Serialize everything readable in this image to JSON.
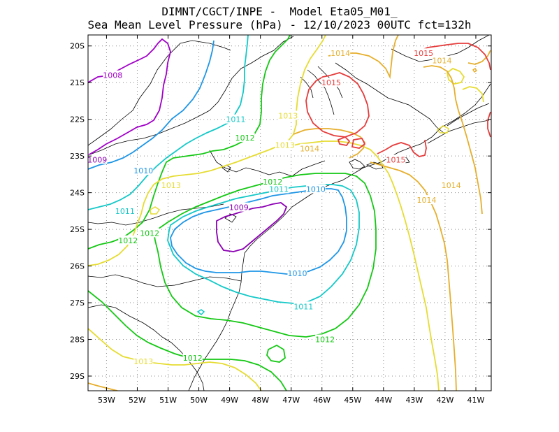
{
  "header": {
    "line1": "DIMNT/CGCT/INPE -  Model Eta05_M01_",
    "line2": "Sea Mean Level Pressure (hPa) - 12/10/2023 00UTC fct=132h"
  },
  "axes": {
    "lon_range": [
      -53.6,
      -40.5
    ],
    "lat_range": [
      -29.4,
      -19.7
    ],
    "lon_ticks": [
      {
        "value": -53,
        "label": "53W"
      },
      {
        "value": -52,
        "label": "52W"
      },
      {
        "value": -51,
        "label": "51W"
      },
      {
        "value": -50,
        "label": "50W"
      },
      {
        "value": -49,
        "label": "49W"
      },
      {
        "value": -48,
        "label": "48W"
      },
      {
        "value": -47,
        "label": "47W"
      },
      {
        "value": -46,
        "label": "46W"
      },
      {
        "value": -45,
        "label": "45W"
      },
      {
        "value": -44,
        "label": "44W"
      },
      {
        "value": -43,
        "label": "43W"
      },
      {
        "value": -42,
        "label": "42W"
      },
      {
        "value": -41,
        "label": "41W"
      }
    ],
    "lat_ticks": [
      {
        "value": -20,
        "label": "20S"
      },
      {
        "value": -21,
        "label": "21S"
      },
      {
        "value": -22,
        "label": "22S"
      },
      {
        "value": -23,
        "label": "23S"
      },
      {
        "value": -24,
        "label": "24S"
      },
      {
        "value": -25,
        "label": "25S"
      },
      {
        "value": -26,
        "label": "26S"
      },
      {
        "value": -27,
        "label": "27S"
      },
      {
        "value": -28,
        "label": "28S"
      },
      {
        "value": -29,
        "label": "29S"
      }
    ],
    "grid": "dotted"
  },
  "contour_levels": [
    {
      "value": 1008,
      "color": "#a000c8"
    },
    {
      "value": 1009,
      "color": "#8c00b4"
    },
    {
      "value": 1010,
      "color": "#1e96e6"
    },
    {
      "value": 1011,
      "color": "#14c8c8"
    },
    {
      "value": 1012,
      "color": "#14c814"
    },
    {
      "value": 1013,
      "color": "#e6dc32"
    },
    {
      "value": 1014,
      "color": "#e6af2d"
    },
    {
      "value": 1015,
      "color": "#e63c3c"
    }
  ],
  "contour_labels": [
    {
      "text": "1008",
      "lon": -52.8,
      "lat": -20.8,
      "level": 1008
    },
    {
      "text": "1009",
      "lon": -53.3,
      "lat": -23.1,
      "level": 1009
    },
    {
      "text": "1009",
      "lon": -48.7,
      "lat": -24.4,
      "level": 1009
    },
    {
      "text": "1010",
      "lon": -51.8,
      "lat": -23.4,
      "level": 1010
    },
    {
      "text": "1010",
      "lon": -46.2,
      "lat": -23.9,
      "level": 1010
    },
    {
      "text": "1010",
      "lon": -46.8,
      "lat": -26.2,
      "level": 1010
    },
    {
      "text": "1011",
      "lon": -48.8,
      "lat": -22.0,
      "level": 1011
    },
    {
      "text": "1011",
      "lon": -47.4,
      "lat": -23.9,
      "level": 1011
    },
    {
      "text": "1011",
      "lon": -52.4,
      "lat": -24.5,
      "level": 1011
    },
    {
      "text": "1011",
      "lon": -46.6,
      "lat": -27.1,
      "level": 1011
    },
    {
      "text": "1012",
      "lon": -48.5,
      "lat": -22.5,
      "level": 1012
    },
    {
      "text": "1012",
      "lon": -47.6,
      "lat": -23.7,
      "level": 1012
    },
    {
      "text": "1012",
      "lon": -51.6,
      "lat": -25.1,
      "level": 1012
    },
    {
      "text": "1012",
      "lon": -52.3,
      "lat": -25.3,
      "level": 1012
    },
    {
      "text": "1012",
      "lon": -45.9,
      "lat": -28.0,
      "level": 1012
    },
    {
      "text": "1012",
      "lon": -50.2,
      "lat": -28.5,
      "level": 1012
    },
    {
      "text": "1013",
      "lon": -47.1,
      "lat": -21.9,
      "level": 1013
    },
    {
      "text": "1013",
      "lon": -47.2,
      "lat": -22.7,
      "level": 1013
    },
    {
      "text": "1013",
      "lon": -50.9,
      "lat": -23.8,
      "level": 1013
    },
    {
      "text": "1013",
      "lon": -51.8,
      "lat": -28.6,
      "level": 1013
    },
    {
      "text": "1014",
      "lon": -45.4,
      "lat": -20.2,
      "level": 1014
    },
    {
      "text": "1014",
      "lon": -42.1,
      "lat": -20.4,
      "level": 1014
    },
    {
      "text": "1014",
      "lon": -46.4,
      "lat": -22.8,
      "level": 1014
    },
    {
      "text": "1014",
      "lon": -42.6,
      "lat": -24.2,
      "level": 1014
    },
    {
      "text": "1014",
      "lon": -41.8,
      "lat": -23.8,
      "level": 1014
    },
    {
      "text": "1015",
      "lon": -42.7,
      "lat": -20.2,
      "level": 1015
    },
    {
      "text": "1015",
      "lon": -45.7,
      "lat": -21.0,
      "level": 1015
    },
    {
      "text": "1015",
      "lon": -43.6,
      "lat": -23.1,
      "level": 1015
    }
  ]
}
